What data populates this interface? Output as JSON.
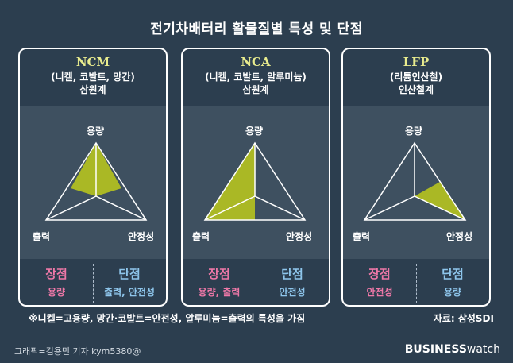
{
  "title": "전기차배터리 활물질별 특성 및 단점",
  "cards": [
    {
      "name": "NCM",
      "sub1": "(니켈, 코발트, 망간)",
      "sub2": "삼원계",
      "labels": {
        "top": "용량",
        "left": "출력",
        "right": "안정성"
      },
      "pros_title": "장점",
      "pros": "용량",
      "cons_title": "단점",
      "cons": "출력, 안전성"
    },
    {
      "name": "NCA",
      "sub1": "(니켈, 코발트, 알루미늄)",
      "sub2": "삼원계",
      "labels": {
        "top": "용량",
        "left": "출력",
        "right": "안정성"
      },
      "pros_title": "장점",
      "pros": "용량, 출력",
      "cons_title": "단점",
      "cons": "안전성"
    },
    {
      "name": "LFP",
      "sub1": "(리튬인산철)",
      "sub2": "인산철계",
      "labels": {
        "top": "용량",
        "left": "출력",
        "right": "안정성"
      },
      "pros_title": "장점",
      "pros": "안전성",
      "cons_title": "단점",
      "cons": "용량"
    }
  ],
  "note": "※니켈=고용량, 망간·코발트=안전성, 알루미늄=출력의 특성을 가짐",
  "source": "자료: 삼성SDI",
  "credit": "그래픽=김용민 기자 kym5380@",
  "brand": {
    "bold": "BUSINESS",
    "light": "watch"
  },
  "colors": {
    "background": "#2c3e4f",
    "panel": "#3e5060",
    "highlight": "#aab825",
    "pros": "#ef78a8",
    "cons": "#8ec6ec",
    "name": "#e9ec8e"
  }
}
